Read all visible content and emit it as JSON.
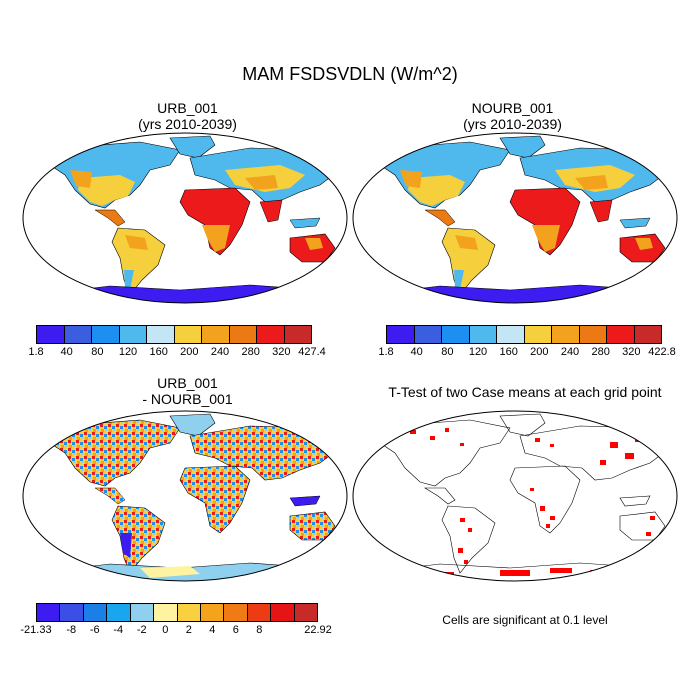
{
  "figure": {
    "title": "MAM FSDSVDLN (W/m^2)",
    "panels": [
      {
        "id": "urb",
        "title_line1": "URB_001",
        "title_line2": "(yrs 2010-2039)"
      },
      {
        "id": "nourb",
        "title_line1": "NOURB_001",
        "title_line2": "(yrs 2010-2039)"
      },
      {
        "id": "diff",
        "title_line1": "URB_001",
        "title_line2": "- NOURB_001"
      },
      {
        "id": "ttest",
        "title_line1": "T-Test of two Case means at each grid point",
        "title_line2": ""
      }
    ],
    "note": "Cells are significant at 0.1 level"
  },
  "colorbars": {
    "urb": {
      "labels": [
        "1.8",
        "40",
        "80",
        "120",
        "160",
        "200",
        "240",
        "280",
        "320",
        "427.4"
      ],
      "colors": [
        "#3d1cf2",
        "#3b5de0",
        "#1c8ff0",
        "#4fb9ee",
        "#c4e6f4",
        "#f6d03c",
        "#f2a21c",
        "#ec7a14",
        "#ec1a1a",
        "#c82a2a"
      ]
    },
    "nourb": {
      "labels": [
        "1.8",
        "40",
        "80",
        "120",
        "160",
        "200",
        "240",
        "280",
        "320",
        "422.8"
      ],
      "colors": [
        "#3d1cf2",
        "#3b5de0",
        "#1c8ff0",
        "#4fb9ee",
        "#c4e6f4",
        "#f6d03c",
        "#f2a21c",
        "#ec7a14",
        "#ec1a1a",
        "#c82a2a"
      ]
    },
    "diff": {
      "labels": [
        "-21.33",
        "-8",
        "-6",
        "-4",
        "-2",
        "0",
        "2",
        "4",
        "6",
        "8",
        "22.92"
      ],
      "colors": [
        "#3d1cf2",
        "#3b4fe6",
        "#1c7fe8",
        "#18a6ee",
        "#8fd0ef",
        "#fdf3a0",
        "#f8d040",
        "#f4a41c",
        "#f07a14",
        "#ec3c14",
        "#e61414",
        "#c82a2a"
      ]
    }
  },
  "legend": {
    "significance_color": "#ff0000",
    "land_outline_color": "#000000"
  }
}
